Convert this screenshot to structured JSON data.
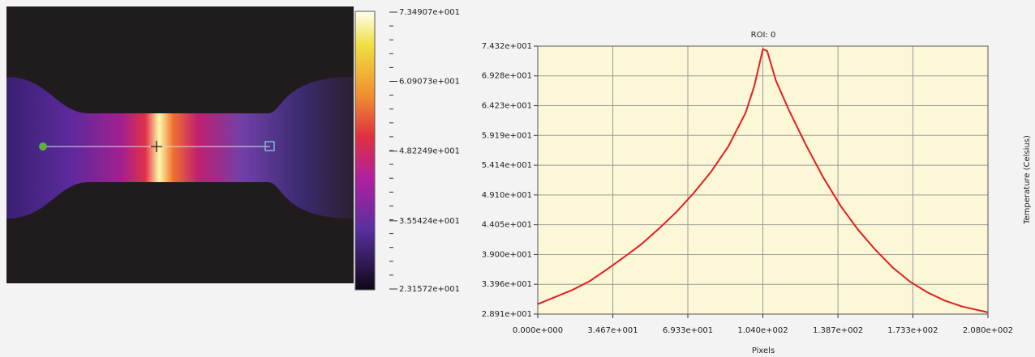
{
  "colorbar": {
    "lim": [
      23.1572,
      73.4907
    ],
    "ticks": [
      {
        "value": 73.4907,
        "label": "7.34907e+001"
      },
      {
        "value": 60.9073,
        "label": "6.09073e+001"
      },
      {
        "value": 48.2249,
        "label": "4.82249e+001"
      },
      {
        "value": 35.5424,
        "label": "3.55424e+001"
      },
      {
        "value": 23.1572,
        "label": "2.31572e+001"
      }
    ]
  },
  "chart_data": {
    "type": "line",
    "title": "ROI: 0",
    "x_label": "Pixels",
    "y_label": "Temperature (Celsius)",
    "xlim": [
      0,
      208
    ],
    "ylim": [
      28.91,
      74.32
    ],
    "grid": true,
    "background": "#fbf7d7",
    "xticks": [
      {
        "value": 0,
        "label": "0.000e+000"
      },
      {
        "value": 34.67,
        "label": "3.467e+001"
      },
      {
        "value": 69.33,
        "label": "6.933e+001"
      },
      {
        "value": 104,
        "label": "1.040e+002"
      },
      {
        "value": 138.7,
        "label": "1.387e+002"
      },
      {
        "value": 173.3,
        "label": "1.733e+002"
      },
      {
        "value": 208,
        "label": "2.080e+002"
      }
    ],
    "yticks": [
      {
        "value": 28.91,
        "label": "2.891e+001"
      },
      {
        "value": 33.96,
        "label": "3.396e+001"
      },
      {
        "value": 39.0,
        "label": "3.900e+001"
      },
      {
        "value": 44.05,
        "label": "4.405e+001"
      },
      {
        "value": 49.1,
        "label": "4.910e+001"
      },
      {
        "value": 54.14,
        "label": "5.414e+001"
      },
      {
        "value": 59.19,
        "label": "5.919e+001"
      },
      {
        "value": 64.23,
        "label": "6.423e+001"
      },
      {
        "value": 69.28,
        "label": "6.928e+001"
      },
      {
        "value": 74.32,
        "label": "7.432e+001"
      }
    ],
    "x": [
      0,
      8,
      16,
      24,
      32,
      40,
      48,
      56,
      64,
      72,
      80,
      88,
      96,
      100,
      104,
      106,
      110,
      116,
      124,
      132,
      140,
      148,
      156,
      164,
      172,
      180,
      188,
      196,
      208
    ],
    "series": [
      {
        "color": "#e02020",
        "values": [
          30.6,
          31.8,
          33.0,
          34.5,
          36.5,
          38.6,
          40.8,
          43.4,
          46.2,
          49.4,
          53.0,
          57.3,
          63.0,
          67.5,
          73.8,
          73.5,
          68.5,
          63.5,
          57.5,
          52.0,
          47.2,
          43.2,
          39.8,
          36.8,
          34.4,
          32.6,
          31.2,
          30.2,
          29.2
        ]
      }
    ]
  }
}
